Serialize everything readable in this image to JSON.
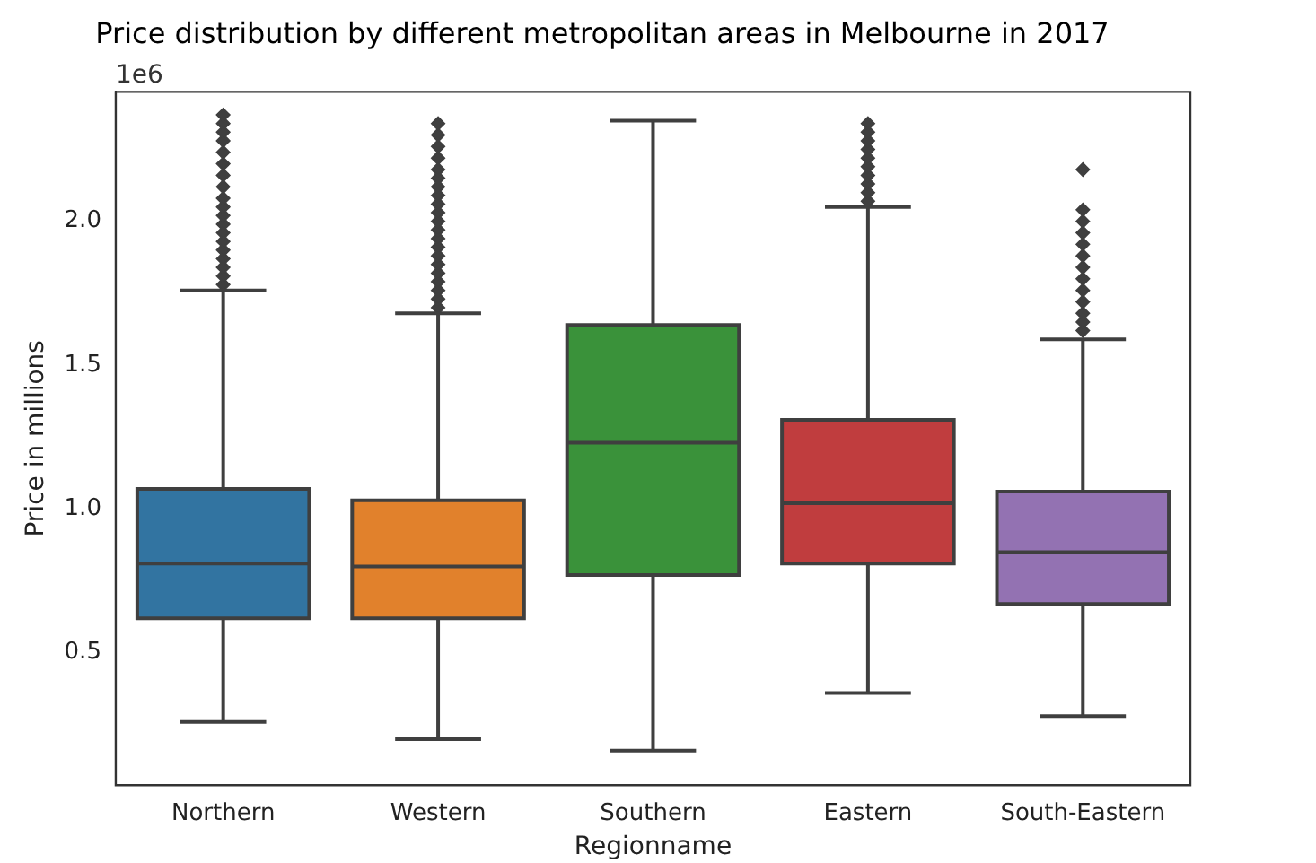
{
  "chart_data": {
    "type": "box",
    "title": "Price distribution by different metropolitan areas in Melbourne in 2017",
    "xlabel": "Regionname",
    "ylabel": "Price in millions",
    "annotations": [
      "1e6"
    ],
    "categories": [
      "Northern",
      "Western",
      "Southern",
      "Eastern",
      "South-Eastern"
    ],
    "colors": [
      "#3274a1",
      "#e1812c",
      "#3a923a",
      "#c03d3e",
      "#9372b2"
    ],
    "boxes": [
      {
        "low": 0.26,
        "q1": 0.62,
        "median": 0.81,
        "q3": 1.07,
        "high": 1.76,
        "outliers": [
          1.78,
          1.81,
          1.84,
          1.87,
          1.9,
          1.93,
          1.96,
          1.99,
          2.02,
          2.05,
          2.08,
          2.12,
          2.16,
          2.2,
          2.24,
          2.28,
          2.31,
          2.34,
          2.37
        ]
      },
      {
        "low": 0.2,
        "q1": 0.62,
        "median": 0.8,
        "q3": 1.03,
        "high": 1.68,
        "outliers": [
          1.7,
          1.73,
          1.76,
          1.79,
          1.82,
          1.85,
          1.88,
          1.91,
          1.94,
          1.97,
          2.0,
          2.03,
          2.06,
          2.09,
          2.12,
          2.15,
          2.18,
          2.22,
          2.26,
          2.3,
          2.34
        ]
      },
      {
        "low": 0.16,
        "q1": 0.77,
        "median": 1.23,
        "q3": 1.64,
        "high": 2.35
      },
      {
        "low": 0.36,
        "q1": 0.81,
        "median": 1.02,
        "q3": 1.31,
        "high": 2.05,
        "outliers": [
          2.07,
          2.1,
          2.13,
          2.16,
          2.19,
          2.22,
          2.25,
          2.28,
          2.31,
          2.34
        ]
      },
      {
        "low": 0.28,
        "q1": 0.67,
        "median": 0.85,
        "q3": 1.06,
        "high": 1.59,
        "outliers": [
          1.62,
          1.65,
          1.68,
          1.72,
          1.76,
          1.8,
          1.84,
          1.88,
          1.92,
          1.96,
          2.0,
          2.04,
          2.18
        ]
      }
    ],
    "ylim": [
      0.04,
      2.45
    ],
    "yticks": [
      0.5,
      {
        "value": 1,
        "label": "1.0"
      },
      1.5,
      {
        "value": 2,
        "label": "2.0"
      }
    ],
    "grid": false,
    "legend": false
  }
}
